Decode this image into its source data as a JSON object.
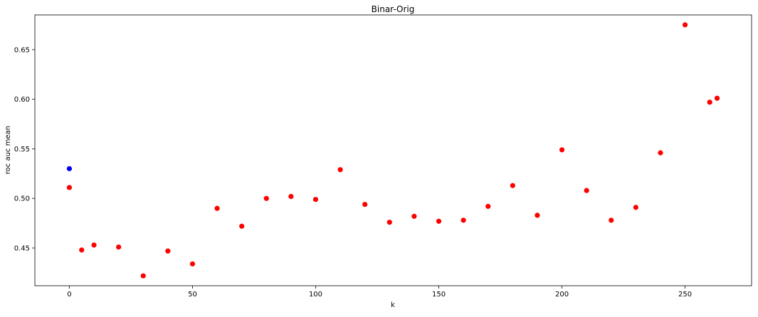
{
  "chart_data": {
    "type": "scatter",
    "title": "Binar-Orig",
    "xlabel": "k",
    "ylabel": "roc auc mean",
    "xlim": [
      -14,
      277
    ],
    "ylim": [
      0.412,
      0.685
    ],
    "xticks": [
      0,
      50,
      100,
      150,
      200,
      250
    ],
    "yticks": [
      0.45,
      0.5,
      0.55,
      0.6,
      0.65
    ],
    "xtick_labels": [
      "0",
      "50",
      "100",
      "150",
      "200",
      "250"
    ],
    "ytick_labels": [
      "0.45",
      "0.50",
      "0.55",
      "0.60",
      "0.65"
    ],
    "grid": false,
    "series": [
      {
        "color": "#0000ff",
        "points": [
          {
            "x": 0,
            "y": 0.53
          }
        ]
      },
      {
        "color": "#ff0000",
        "points": [
          {
            "x": 0,
            "y": 0.511
          },
          {
            "x": 5,
            "y": 0.448
          },
          {
            "x": 10,
            "y": 0.453
          },
          {
            "x": 20,
            "y": 0.451
          },
          {
            "x": 30,
            "y": 0.422
          },
          {
            "x": 40,
            "y": 0.447
          },
          {
            "x": 50,
            "y": 0.434
          },
          {
            "x": 60,
            "y": 0.49
          },
          {
            "x": 70,
            "y": 0.472
          },
          {
            "x": 80,
            "y": 0.5
          },
          {
            "x": 90,
            "y": 0.502
          },
          {
            "x": 100,
            "y": 0.499
          },
          {
            "x": 110,
            "y": 0.529
          },
          {
            "x": 120,
            "y": 0.494
          },
          {
            "x": 130,
            "y": 0.476
          },
          {
            "x": 140,
            "y": 0.482
          },
          {
            "x": 150,
            "y": 0.477
          },
          {
            "x": 160,
            "y": 0.478
          },
          {
            "x": 170,
            "y": 0.492
          },
          {
            "x": 180,
            "y": 0.513
          },
          {
            "x": 190,
            "y": 0.483
          },
          {
            "x": 200,
            "y": 0.549
          },
          {
            "x": 210,
            "y": 0.508
          },
          {
            "x": 220,
            "y": 0.478
          },
          {
            "x": 230,
            "y": 0.491
          },
          {
            "x": 240,
            "y": 0.546
          },
          {
            "x": 250,
            "y": 0.675
          },
          {
            "x": 260,
            "y": 0.597
          },
          {
            "x": 263,
            "y": 0.601
          }
        ]
      }
    ]
  }
}
